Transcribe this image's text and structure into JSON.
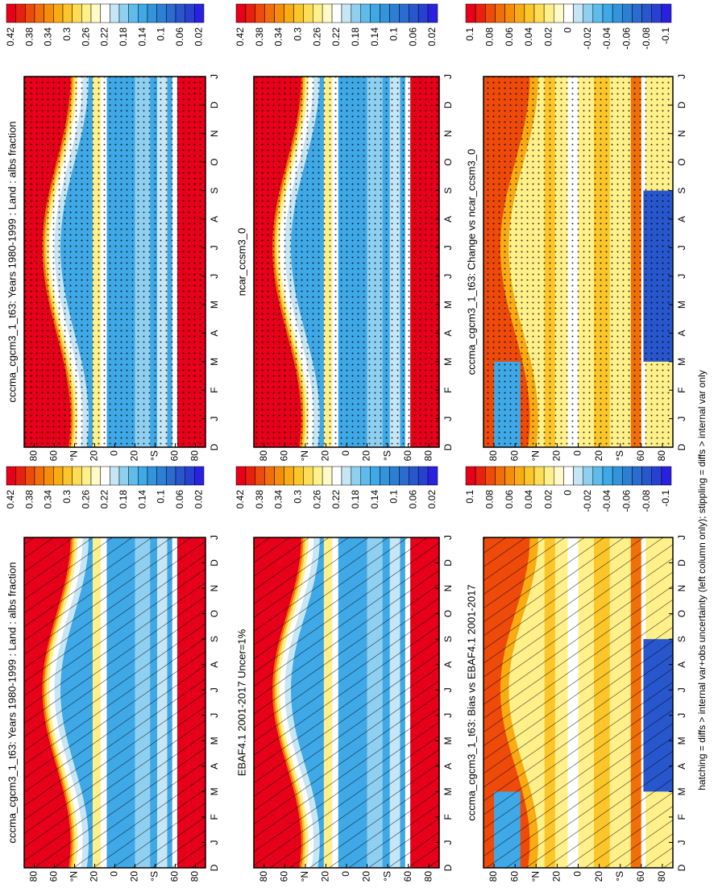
{
  "caption": "hatching = diffs > internal var+obs uncertainty (left column only); stippling = diffs > internal var only",
  "months": [
    "D",
    "J",
    "F",
    "M",
    "A",
    "M",
    "J",
    "J",
    "A",
    "S",
    "O",
    "N",
    "D",
    "J"
  ],
  "lat_labels": [
    "80",
    "60",
    "°N",
    "20",
    "0",
    "20",
    "°S",
    "60",
    "80"
  ],
  "colors": [
    "#e6001a",
    "#e8200f",
    "#ee4a0a",
    "#f26e08",
    "#f58d0a",
    "#f9ab12",
    "#fcc52a",
    "#fedd55",
    "#fff08a",
    "#fffac8",
    "#ffffff",
    "#c6e6f5",
    "#8fd0f0",
    "#5dbcec",
    "#3fa8e6",
    "#3394db",
    "#2c80d4",
    "#2a6ccf",
    "#2856cc",
    "#2840d2",
    "#2a20e0"
  ],
  "panels": [
    {
      "title": "cccma_cgcm3_1_t63: Years 1980-1999 : Land : albs fraction",
      "colorbar_labels": [
        "0.42",
        "0.38",
        "0.34",
        "0.3",
        "0.26",
        "0.22",
        "0.18",
        "0.14",
        "0.1",
        "0.06",
        "0.02"
      ]
    },
    {
      "title": "EBAF4.1 2001-2017 Uncer=1%",
      "colorbar_labels": [
        "0.42",
        "0.38",
        "0.34",
        "0.3",
        "0.26",
        "0.22",
        "0.18",
        "0.14",
        "0.1",
        "0.06",
        "0.02"
      ]
    },
    {
      "title": "cccma_cgcm3_1_t63: Bias vs EBAF4.1 2001-2017",
      "colorbar_labels": [
        "0.1",
        "0.08",
        "0.06",
        "0.04",
        "0.02",
        "0",
        "-0.02",
        "-0.04",
        "-0.06",
        "-0.08",
        "-0.1"
      ]
    },
    {
      "title": "cccma_cgcm3_1_t63: Years 1980-1999 : Land : albs fraction",
      "colorbar_labels": [
        "0.42",
        "0.38",
        "0.34",
        "0.3",
        "0.26",
        "0.22",
        "0.18",
        "0.14",
        "0.1",
        "0.06",
        "0.02"
      ]
    },
    {
      "title": "ncar_ccsm3_0",
      "colorbar_labels": [
        "0.42",
        "0.38",
        "0.34",
        "0.3",
        "0.26",
        "0.22",
        "0.18",
        "0.14",
        "0.1",
        "0.06",
        "0.02"
      ]
    },
    {
      "title": "cccma_cgcm3_1_t63: Change vs ncar_ccsm3_0",
      "colorbar_labels": [
        "0.1",
        "0.08",
        "0.06",
        "0.04",
        "0.02",
        "0",
        "-0.02",
        "-0.04",
        "-0.06",
        "-0.08",
        "-0.1"
      ]
    }
  ]
}
